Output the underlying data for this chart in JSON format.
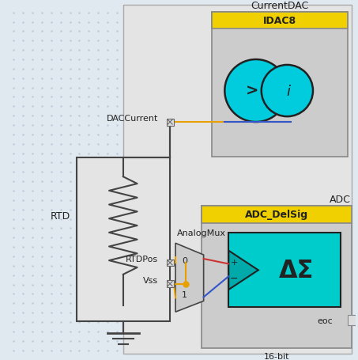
{
  "bg_color": "#e8e8e8",
  "dac_title": "CurrentDAC",
  "dac_label": "IDAC8",
  "adc_title": "ADC",
  "adc_label": "ADC_DelSig",
  "rtd_label": "RTD",
  "daccurrent_label": "DACCurrent",
  "rtdpos_label": "RTDPos",
  "vss_label": "Vss",
  "analogmux_label": "AnalogMux",
  "eoc_label": "eoc",
  "bit_label": "16-bit",
  "orange": "#e8a000",
  "blue": "#3355cc",
  "red_wire": "#cc3333",
  "cyan": "#00cccc",
  "dark": "#222222",
  "gray_box": "#cccccc",
  "yellow": "#f0d000",
  "wire_dark": "#444444",
  "dot_bg": "#e0e8f0"
}
